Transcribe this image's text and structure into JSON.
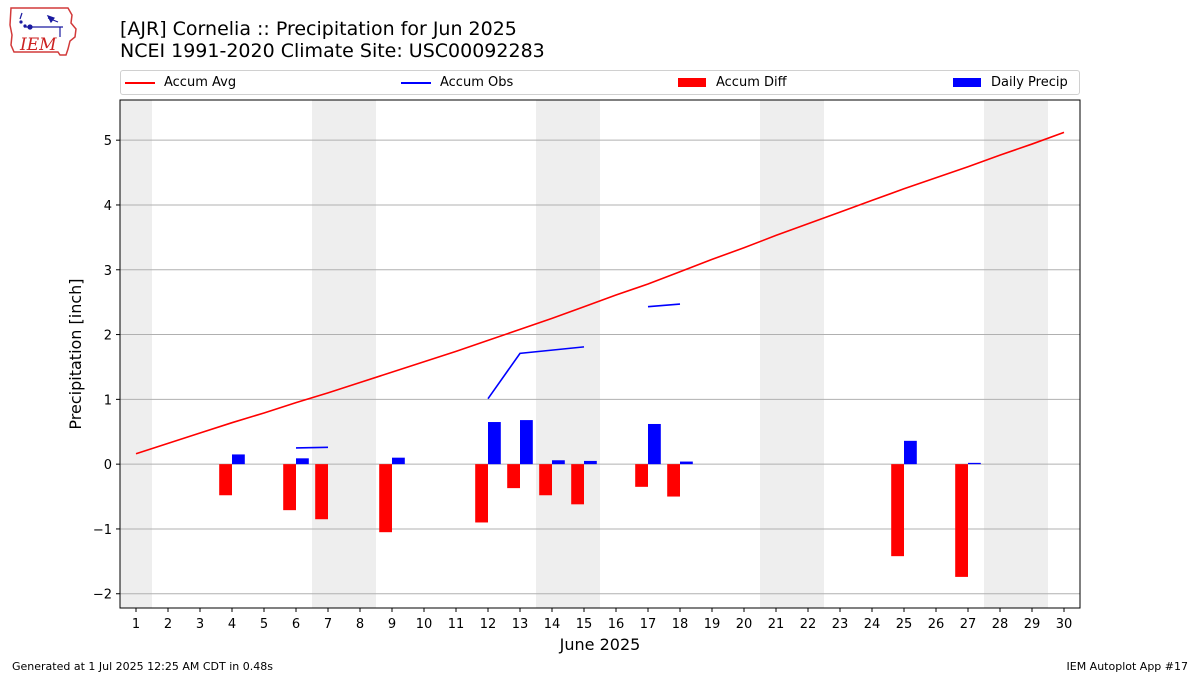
{
  "header": {
    "logo_text": "IEM",
    "title_line1": "[AJR] Cornelia :: Precipitation for Jun 2025",
    "title_line2": "NCEI 1991-2020 Climate Site: USC00092283"
  },
  "footer": {
    "left": "Generated at 1 Jul 2025 12:25 AM CDT in 0.48s",
    "right": "IEM Autoplot App #17"
  },
  "colors": {
    "accum_avg": "#ff0000",
    "accum_obs": "#0000ff",
    "accum_diff": "#ff0000",
    "daily_precip": "#0000ff",
    "weekend_shade": "#eeeeee",
    "grid": "#b0b0b0"
  },
  "chart_data": {
    "type": "bar",
    "xlabel": "June 2025",
    "ylabel": "Precipitation [inch]",
    "xlim": [
      0.5,
      30.5
    ],
    "ylim": [
      -2.22,
      5.62
    ],
    "x_ticks": [
      1,
      2,
      3,
      4,
      5,
      6,
      7,
      8,
      9,
      10,
      11,
      12,
      13,
      14,
      15,
      16,
      17,
      18,
      19,
      20,
      21,
      22,
      23,
      24,
      25,
      26,
      27,
      28,
      29,
      30
    ],
    "y_ticks": [
      -2,
      -1,
      0,
      1,
      2,
      3,
      4,
      5
    ],
    "grid": "horizontal",
    "legend_position": "top",
    "legend": [
      "Accum Avg",
      "Accum Obs",
      "Accum Diff",
      "Daily Precip"
    ],
    "weekend_days": [
      1,
      7,
      8,
      14,
      15,
      21,
      22,
      28,
      29
    ],
    "series": [
      {
        "name": "Accum Avg",
        "type": "line",
        "x": [
          1,
          2,
          3,
          4,
          5,
          6,
          7,
          8,
          9,
          10,
          11,
          12,
          13,
          14,
          15,
          16,
          17,
          18,
          19,
          20,
          21,
          22,
          23,
          24,
          25,
          26,
          27,
          28,
          29,
          30
        ],
        "values": [
          0.16,
          0.32,
          0.48,
          0.64,
          0.79,
          0.95,
          1.1,
          1.26,
          1.42,
          1.58,
          1.74,
          1.91,
          2.08,
          2.25,
          2.43,
          2.61,
          2.78,
          2.97,
          3.16,
          3.34,
          3.53,
          3.71,
          3.89,
          4.07,
          4.25,
          4.42,
          4.59,
          4.77,
          4.94,
          5.12
        ]
      },
      {
        "name": "Accum Obs",
        "type": "line",
        "segments": [
          {
            "x": [
              6,
              7
            ],
            "values": [
              0.25,
              0.26
            ]
          },
          {
            "x": [
              12,
              13,
              14,
              15
            ],
            "values": [
              1.01,
              1.71,
              1.76,
              1.81
            ]
          },
          {
            "x": [
              17,
              18
            ],
            "values": [
              2.43,
              2.47
            ]
          }
        ]
      },
      {
        "name": "Accum Diff",
        "type": "bar",
        "x": [
          4,
          6,
          7,
          9,
          12,
          13,
          14,
          15,
          17,
          18,
          25,
          27
        ],
        "values": [
          -0.48,
          -0.71,
          -0.85,
          -1.05,
          -0.9,
          -0.37,
          -0.48,
          -0.62,
          -0.35,
          -0.5,
          -1.42,
          -1.74
        ]
      },
      {
        "name": "Daily Precip",
        "type": "bar",
        "x": [
          4,
          6,
          9,
          12,
          13,
          14,
          15,
          17,
          18,
          25,
          27
        ],
        "values": [
          0.15,
          0.09,
          0.1,
          0.65,
          0.68,
          0.06,
          0.05,
          0.62,
          0.04,
          0.36,
          0.02
        ]
      }
    ]
  }
}
